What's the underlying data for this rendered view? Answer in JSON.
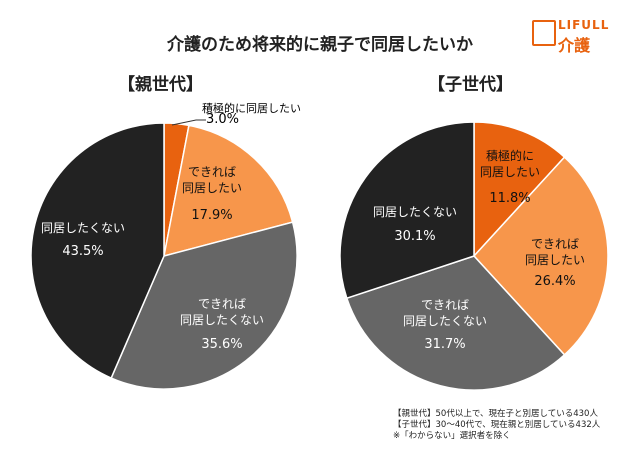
{
  "title": "介護のため将来的に親子で同居したいか",
  "logo": {
    "text_top": "LIFULL",
    "text_bottom": "介護",
    "color": "#e8620f"
  },
  "chart_data": [
    {
      "type": "pie",
      "title": "【親世代】",
      "start": "12 o'clock",
      "direction": "clockwise",
      "slices": [
        {
          "label": "積極的に同居したい",
          "value": 3.0,
          "color": "#e8620f"
        },
        {
          "label": "できれば同居したい",
          "value": 17.9,
          "color": "#f7964b"
        },
        {
          "label": "できれば同居したくない",
          "value": 35.6,
          "color": "#666666"
        },
        {
          "label": "同居したくない",
          "value": 43.5,
          "color": "#222222"
        }
      ]
    },
    {
      "type": "pie",
      "title": "【子世代】",
      "start": "12 o'clock",
      "direction": "clockwise",
      "slices": [
        {
          "label": "積極的に同居したい",
          "value": 11.8,
          "color": "#e8620f"
        },
        {
          "label": "できれば同居したい",
          "value": 26.4,
          "color": "#f7964b"
        },
        {
          "label": "できれば同居したくない",
          "value": 31.7,
          "color": "#666666"
        },
        {
          "label": "同居したくない",
          "value": 30.1,
          "color": "#222222"
        }
      ]
    }
  ],
  "labels": {
    "p0": "積極的に同居したい",
    "p0v": "3.0%",
    "p1": "できれば\n同居したい",
    "p1v": "17.9%",
    "p2": "できれば\n同居したくない",
    "p2v": "35.6%",
    "p3": "同居したくない",
    "p3v": "43.5%",
    "c0": "積極的に\n同居したい",
    "c0v": "11.8%",
    "c1": "できれば\n同居したい",
    "c1v": "26.4%",
    "c2": "できれば\n同居したくない",
    "c2v": "31.7%",
    "c3": "同居したくない",
    "c3v": "30.1%"
  },
  "notes": [
    "【親世代】50代以上で、現在子と別居している430人",
    "【子世代】30～40代で、現在親と別居している432人",
    "※「わからない」選択者を除く"
  ]
}
